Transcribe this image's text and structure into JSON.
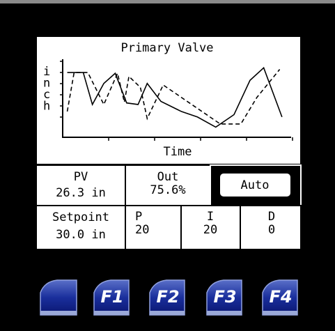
{
  "chart_data": {
    "type": "line",
    "title": "Primary Valve",
    "xlabel": "Time",
    "ylabel": "inch",
    "xlim": [
      0,
      100
    ],
    "ylim": [
      0,
      100
    ],
    "series": [
      {
        "color": "#000000",
        "style": "solid",
        "x": [
          2,
          9,
          13,
          18,
          23,
          28,
          33,
          37,
          43,
          52,
          59,
          67,
          75,
          82,
          88,
          96
        ],
        "values": [
          83,
          83,
          42,
          69,
          82,
          44,
          42,
          69,
          46,
          33,
          26,
          13,
          29,
          73,
          89,
          26
        ]
      },
      {
        "color": "#000000",
        "style": "dashed",
        "x": [
          2,
          5,
          11,
          18,
          24,
          27,
          29,
          34,
          37,
          44,
          52,
          61,
          69,
          78,
          85,
          95
        ],
        "values": [
          33,
          83,
          83,
          42,
          82,
          45,
          78,
          64,
          24,
          67,
          51,
          33,
          17,
          17,
          51,
          87
        ]
      }
    ]
  },
  "readouts": {
    "pv": {
      "label": "PV",
      "value": "26.3 in"
    },
    "out": {
      "label": "Out",
      "value": "75.6%"
    },
    "mode": "Auto",
    "setpoint": {
      "label": "Setpoint",
      "value": "30.0 in"
    },
    "p": {
      "label": "P",
      "value": "20"
    },
    "i": {
      "label": "I",
      "value": "20"
    },
    "d": {
      "label": "D",
      "value": "0"
    }
  },
  "function_keys": [
    "F1",
    "F2",
    "F3",
    "F4"
  ]
}
